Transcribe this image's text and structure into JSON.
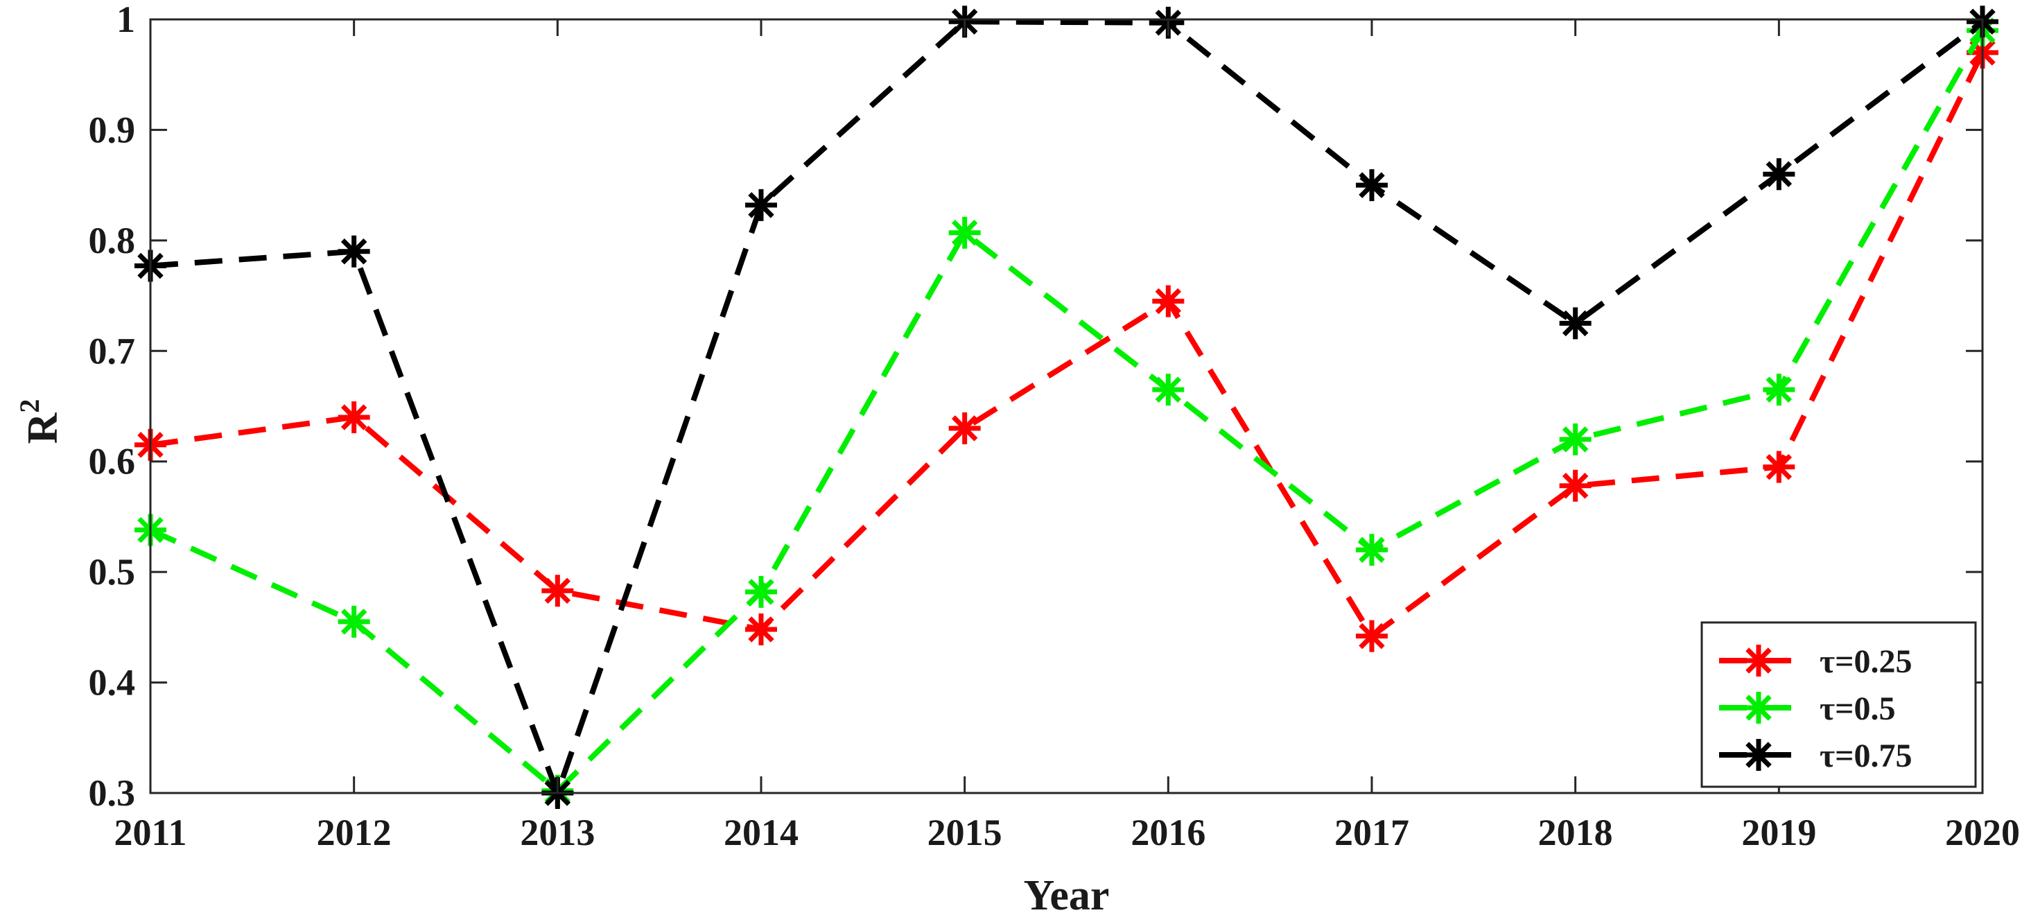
{
  "chart_data": {
    "type": "line",
    "x": [
      2011,
      2012,
      2013,
      2014,
      2015,
      2016,
      2017,
      2018,
      2019,
      2020
    ],
    "series": [
      {
        "name": "τ=0.25",
        "color": "#ff0000",
        "values": [
          0.615,
          0.64,
          0.483,
          0.448,
          0.63,
          0.745,
          0.442,
          0.578,
          0.595,
          0.97
        ]
      },
      {
        "name": "τ=0.5",
        "color": "#00ee00",
        "values": [
          0.538,
          0.455,
          0.302,
          0.482,
          0.807,
          0.665,
          0.52,
          0.62,
          0.665,
          0.99
        ]
      },
      {
        "name": "τ=0.75",
        "color": "#000000",
        "values": [
          0.777,
          0.79,
          0.3,
          0.832,
          0.998,
          0.997,
          0.85,
          0.725,
          0.86,
          0.998
        ]
      }
    ],
    "title": "",
    "xlabel": "Year",
    "ylabel": "R",
    "ylabel_superscript": "2",
    "xlim": [
      2011,
      2020
    ],
    "ylim": [
      0.3,
      1
    ],
    "xticks": [
      "2011",
      "2012",
      "2013",
      "2014",
      "2015",
      "2016",
      "2017",
      "2018",
      "2019",
      "2020"
    ],
    "yticks": [
      "0.3",
      "0.4",
      "0.5",
      "0.6",
      "0.7",
      "0.8",
      "0.9",
      "1"
    ],
    "grid": false,
    "legend_position": "bottom-right",
    "line_style": "dashed",
    "marker": "asterisk"
  }
}
